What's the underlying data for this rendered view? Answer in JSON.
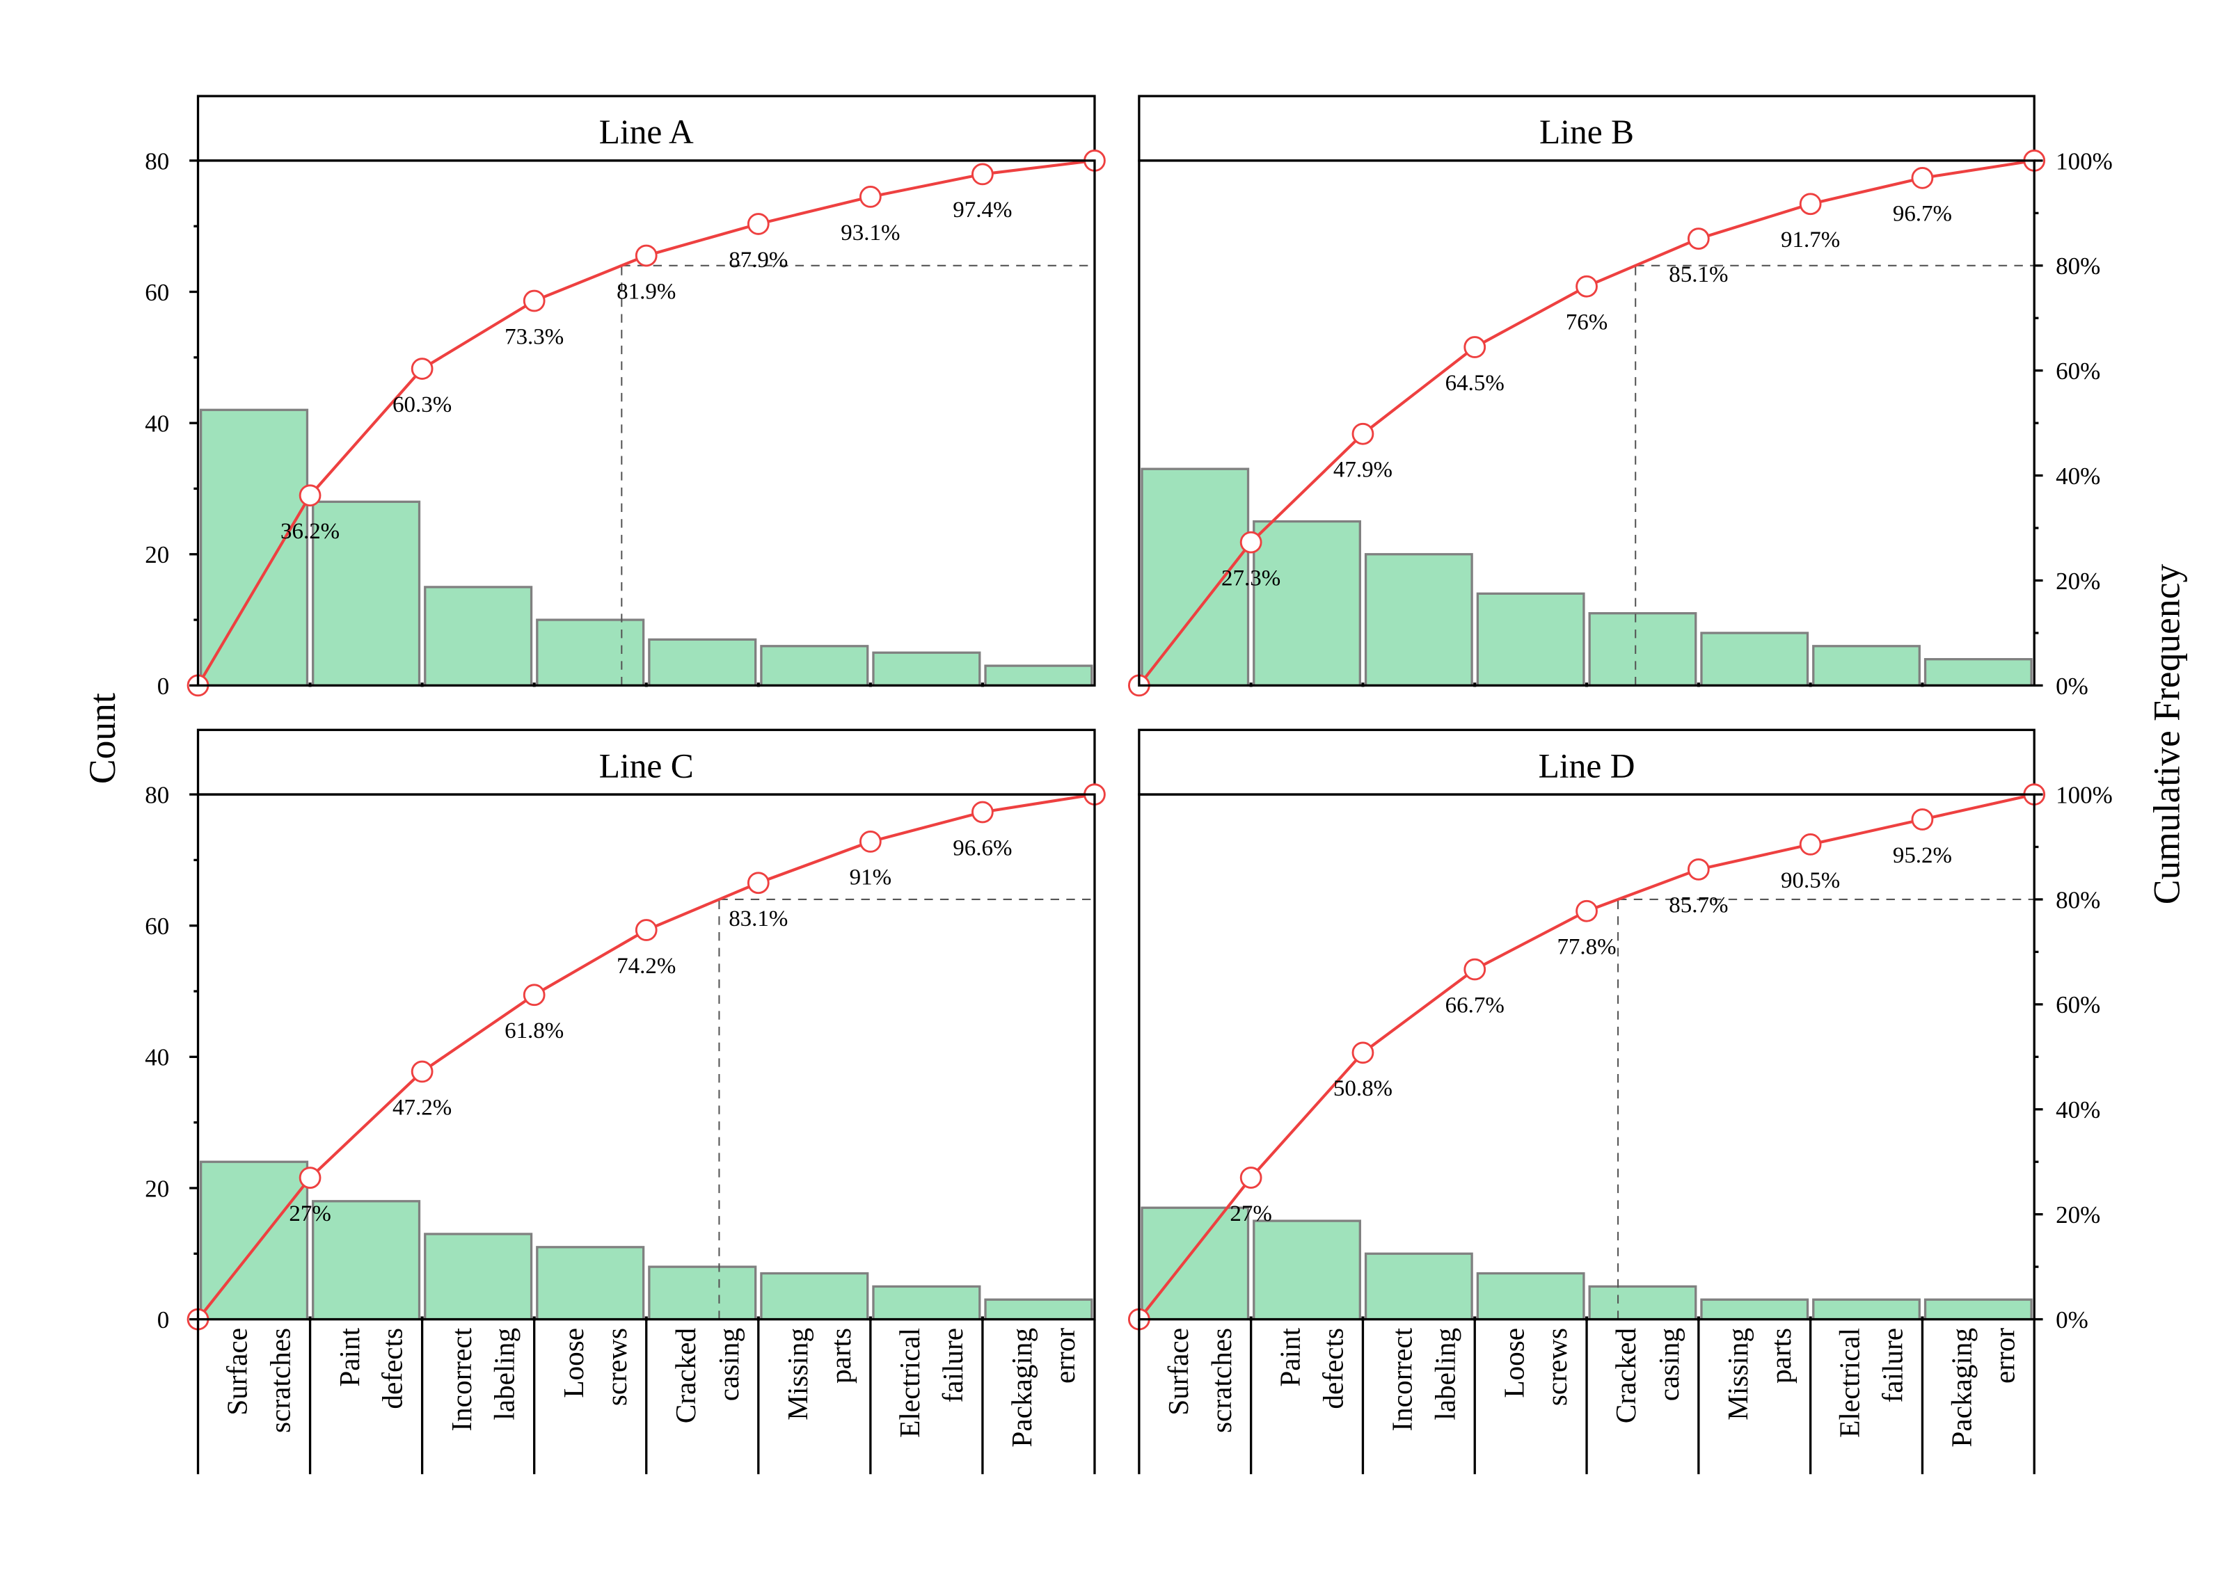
{
  "chart_data": {
    "type": "bar",
    "subtype": "pareto",
    "ylabel": "Count",
    "ylabel_right": "Cumulative Frequency",
    "ylim": [
      0,
      80
    ],
    "ylim_right": [
      0,
      100
    ],
    "yticks": [
      "0",
      "20",
      "40",
      "60",
      "80"
    ],
    "yticks_right": [
      "0%",
      "20%",
      "40%",
      "60%",
      "80%",
      "100%"
    ],
    "threshold_pct": 80,
    "categories": [
      "Surface scratches",
      "Paint defects",
      "Incorrect labeling",
      "Loose screws",
      "Cracked casing",
      "Missing parts",
      "Electrical failure",
      "Packaging error"
    ],
    "colors": {
      "bar": "#9fe2bb",
      "bar_edge": "#808080",
      "line": "#ee4040",
      "marker_fill": "#ffffff"
    },
    "grid": false,
    "panels": [
      {
        "title": "Line A",
        "values": [
          42,
          28,
          15,
          10,
          7,
          6,
          5,
          3
        ],
        "cumulative_labels": [
          "36.2%",
          "60.3%",
          "73.3%",
          "81.9%",
          "87.9%",
          "93.1%",
          "97.4%"
        ]
      },
      {
        "title": "Line B",
        "values": [
          33,
          25,
          20,
          14,
          11,
          8,
          6,
          4
        ],
        "cumulative_labels": [
          "27.3%",
          "47.9%",
          "64.5%",
          "76%",
          "85.1%",
          "91.7%",
          "96.7%"
        ]
      },
      {
        "title": "Line C",
        "values": [
          24,
          18,
          13,
          11,
          8,
          7,
          5,
          3
        ],
        "cumulative_labels": [
          "27%",
          "47.2%",
          "61.8%",
          "74.2%",
          "83.1%",
          "91%",
          "96.6%"
        ]
      },
      {
        "title": "Line D",
        "values": [
          17,
          15,
          10,
          7,
          5,
          3,
          3,
          3
        ],
        "cumulative_labels": [
          "27%",
          "50.8%",
          "66.7%",
          "77.8%",
          "85.7%",
          "90.5%",
          "95.2%"
        ]
      }
    ]
  }
}
